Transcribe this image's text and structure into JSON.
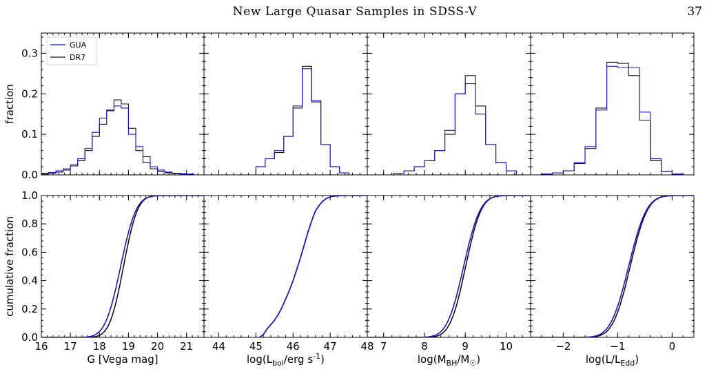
{
  "header": {
    "title": "New Large Quasar Samples in SDSS-V",
    "page_number": "37"
  },
  "legend": {
    "entries": [
      "GUA",
      "DR7"
    ]
  },
  "colors": {
    "GUA": "#1414c8",
    "DR7": "#111111"
  },
  "chart_data": [
    {
      "type": "line",
      "panel": "hist-g",
      "ylabel": "fraction",
      "xlim": [
        16,
        21.6
      ],
      "ylim": [
        0,
        0.35
      ],
      "yticks": [
        "0.0",
        "0.1",
        "0.2",
        "0.3"
      ],
      "legend_position": "upper-left",
      "bin_edges": [
        16.0,
        16.25,
        16.5,
        16.75,
        17.0,
        17.25,
        17.5,
        17.75,
        18.0,
        18.25,
        18.5,
        18.75,
        19.0,
        19.25,
        19.5,
        19.75,
        20.0,
        20.25,
        20.5,
        20.75,
        21.0,
        21.25
      ],
      "series": [
        {
          "name": "GUA",
          "values": [
            0.004,
            0.006,
            0.01,
            0.015,
            0.025,
            0.04,
            0.065,
            0.105,
            0.14,
            0.16,
            0.17,
            0.165,
            0.1,
            0.07,
            0.045,
            0.02,
            0.012,
            0.007,
            0.004,
            0.003,
            0.002
          ]
        },
        {
          "name": "DR7",
          "values": [
            0.002,
            0.004,
            0.007,
            0.012,
            0.022,
            0.035,
            0.06,
            0.095,
            0.125,
            0.158,
            0.185,
            0.175,
            0.115,
            0.06,
            0.03,
            0.015,
            0.008,
            0.005,
            0.003,
            0.002,
            0.001
          ]
        }
      ]
    },
    {
      "type": "line",
      "panel": "hist-lbol",
      "xlim": [
        43.6,
        48
      ],
      "ylim": [
        0,
        0.35
      ],
      "bin_edges": [
        45.0,
        45.25,
        45.5,
        45.75,
        46.0,
        46.25,
        46.5,
        46.75,
        47.0,
        47.25,
        47.5
      ],
      "series": [
        {
          "name": "GUA",
          "values": [
            0.02,
            0.04,
            0.06,
            0.095,
            0.17,
            0.262,
            0.183,
            0.075,
            0.02,
            0.005
          ]
        },
        {
          "name": "DR7",
          "values": [
            0.02,
            0.04,
            0.055,
            0.095,
            0.165,
            0.268,
            0.18,
            0.075,
            0.02,
            0.005
          ]
        }
      ]
    },
    {
      "type": "line",
      "panel": "hist-mbh",
      "xlim": [
        6.6,
        10.6
      ],
      "ylim": [
        0,
        0.35
      ],
      "bin_edges": [
        7.25,
        7.5,
        7.75,
        8.0,
        8.25,
        8.5,
        8.75,
        9.0,
        9.25,
        9.5,
        9.75,
        10.0,
        10.25
      ],
      "series": [
        {
          "name": "GUA",
          "values": [
            0.004,
            0.01,
            0.02,
            0.035,
            0.06,
            0.11,
            0.2,
            0.225,
            0.15,
            0.075,
            0.03,
            0.01
          ]
        },
        {
          "name": "DR7",
          "values": [
            0.004,
            0.01,
            0.02,
            0.035,
            0.06,
            0.1,
            0.2,
            0.245,
            0.17,
            0.075,
            0.03,
            0.01
          ]
        }
      ]
    },
    {
      "type": "line",
      "panel": "hist-edd",
      "xlim": [
        -2.6,
        0.4
      ],
      "ylim": [
        0,
        0.35
      ],
      "bin_edges": [
        -2.4,
        -2.2,
        -2.0,
        -1.8,
        -1.6,
        -1.4,
        -1.2,
        -1.0,
        -0.8,
        -0.6,
        -0.4,
        -0.2,
        0.0,
        0.2
      ],
      "series": [
        {
          "name": "GUA",
          "values": [
            0.002,
            0.005,
            0.01,
            0.03,
            0.07,
            0.16,
            0.268,
            0.265,
            0.265,
            0.155,
            0.04,
            0.008,
            0.002
          ]
        },
        {
          "name": "DR7",
          "values": [
            0.002,
            0.005,
            0.01,
            0.028,
            0.065,
            0.165,
            0.278,
            0.275,
            0.245,
            0.135,
            0.035,
            0.008,
            0.002
          ]
        }
      ]
    },
    {
      "type": "line",
      "panel": "cdf-g",
      "xlabel": "G [Vega mag]",
      "ylabel": "cumulative fraction",
      "xlim": [
        16,
        21.6
      ],
      "ylim": [
        0,
        1
      ],
      "xticks": [
        "16",
        "17",
        "18",
        "19",
        "20",
        "21"
      ],
      "yticks": [
        "0.0",
        "0.2",
        "0.4",
        "0.6",
        "0.8",
        "1.0"
      ],
      "series": [
        {
          "name": "GUA",
          "median": 18.73,
          "width": 0.42
        },
        {
          "name": "DR7",
          "median": 18.83,
          "width": 0.38
        }
      ]
    },
    {
      "type": "line",
      "panel": "cdf-lbol",
      "xlabel": "log(L_bol/erg s^-1)",
      "xlim": [
        43.6,
        48
      ],
      "ylim": [
        0,
        1
      ],
      "xticks": [
        "44",
        "45",
        "46",
        "47",
        "48"
      ],
      "x": [
        45.1,
        45.2,
        45.3,
        45.4,
        45.5,
        45.6,
        45.7,
        45.8,
        45.9,
        46.0,
        46.1,
        46.2,
        46.3,
        46.4,
        46.5,
        46.6,
        46.7,
        46.8,
        46.9,
        47.0,
        47.1,
        47.2,
        47.3,
        47.5,
        47.8
      ],
      "series": [
        {
          "name": "GUA",
          "values": [
            0.0,
            0.02,
            0.06,
            0.09,
            0.12,
            0.16,
            0.21,
            0.27,
            0.33,
            0.4,
            0.48,
            0.56,
            0.65,
            0.74,
            0.82,
            0.89,
            0.93,
            0.96,
            0.98,
            0.99,
            0.995,
            0.998,
            0.999,
            1.0,
            1.0
          ]
        },
        {
          "name": "DR7",
          "values": [
            0.0,
            0.02,
            0.06,
            0.09,
            0.12,
            0.16,
            0.21,
            0.27,
            0.33,
            0.4,
            0.48,
            0.56,
            0.65,
            0.74,
            0.82,
            0.89,
            0.93,
            0.96,
            0.98,
            0.99,
            0.995,
            0.998,
            0.999,
            1.0,
            1.0
          ]
        }
      ]
    },
    {
      "type": "line",
      "panel": "cdf-mbh",
      "xlabel": "log(M_BH/M_☉)",
      "xlim": [
        6.6,
        10.6
      ],
      "ylim": [
        0,
        1
      ],
      "xticks": [
        "7",
        "8",
        "9",
        "10"
      ],
      "series": [
        {
          "name": "GUA",
          "median": 8.96,
          "width": 0.32
        },
        {
          "name": "DR7",
          "median": 9.01,
          "width": 0.3
        }
      ]
    },
    {
      "type": "line",
      "panel": "cdf-edd",
      "xlabel": "log(L/L_Edd)",
      "xlim": [
        -2.6,
        0.4
      ],
      "ylim": [
        0,
        1
      ],
      "xticks": [
        "−2",
        "−1",
        "0"
      ],
      "series": [
        {
          "name": "GUA",
          "median": -0.8,
          "width": 0.26
        },
        {
          "name": "DR7",
          "median": -0.77,
          "width": 0.25
        }
      ]
    }
  ]
}
